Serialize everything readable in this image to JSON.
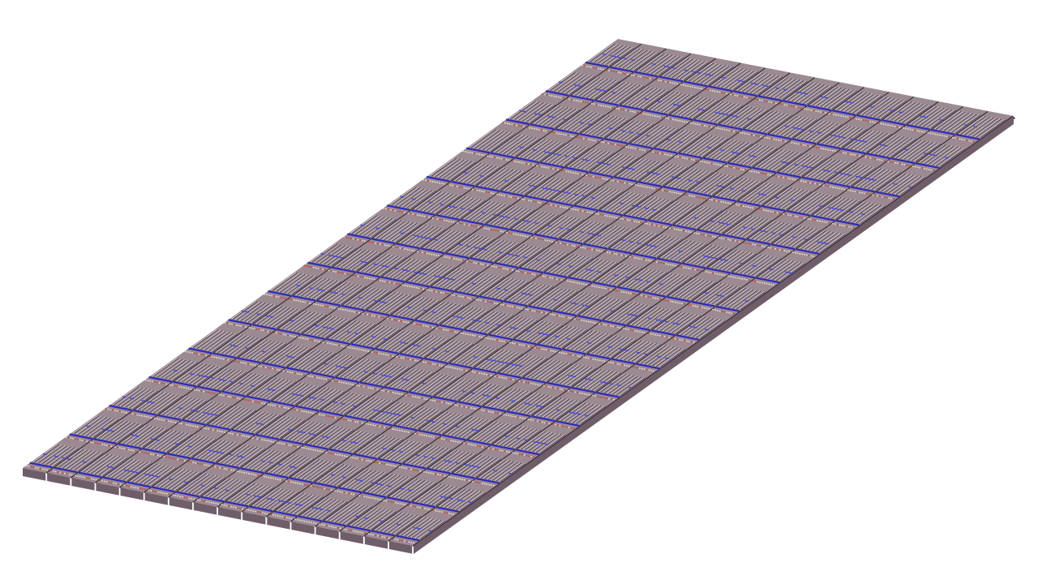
{
  "scene": {
    "description_visible_text": "",
    "background_color": "#ffffff",
    "colors": {
      "panel_top": "#9c8a93",
      "panel_side": "#6f5e69",
      "panel_edge_dark": "#3b2f3a",
      "rail_blue": "#2b2bb8",
      "rail_blue_light": "#4a4ad6",
      "rail_red": "#c4483a",
      "rail_cream": "#e8ddc8",
      "feature_light": "#d9cdd2",
      "feature_dark": "#2a2230"
    },
    "grid": {
      "strips": 16,
      "rows": 15
    }
  }
}
